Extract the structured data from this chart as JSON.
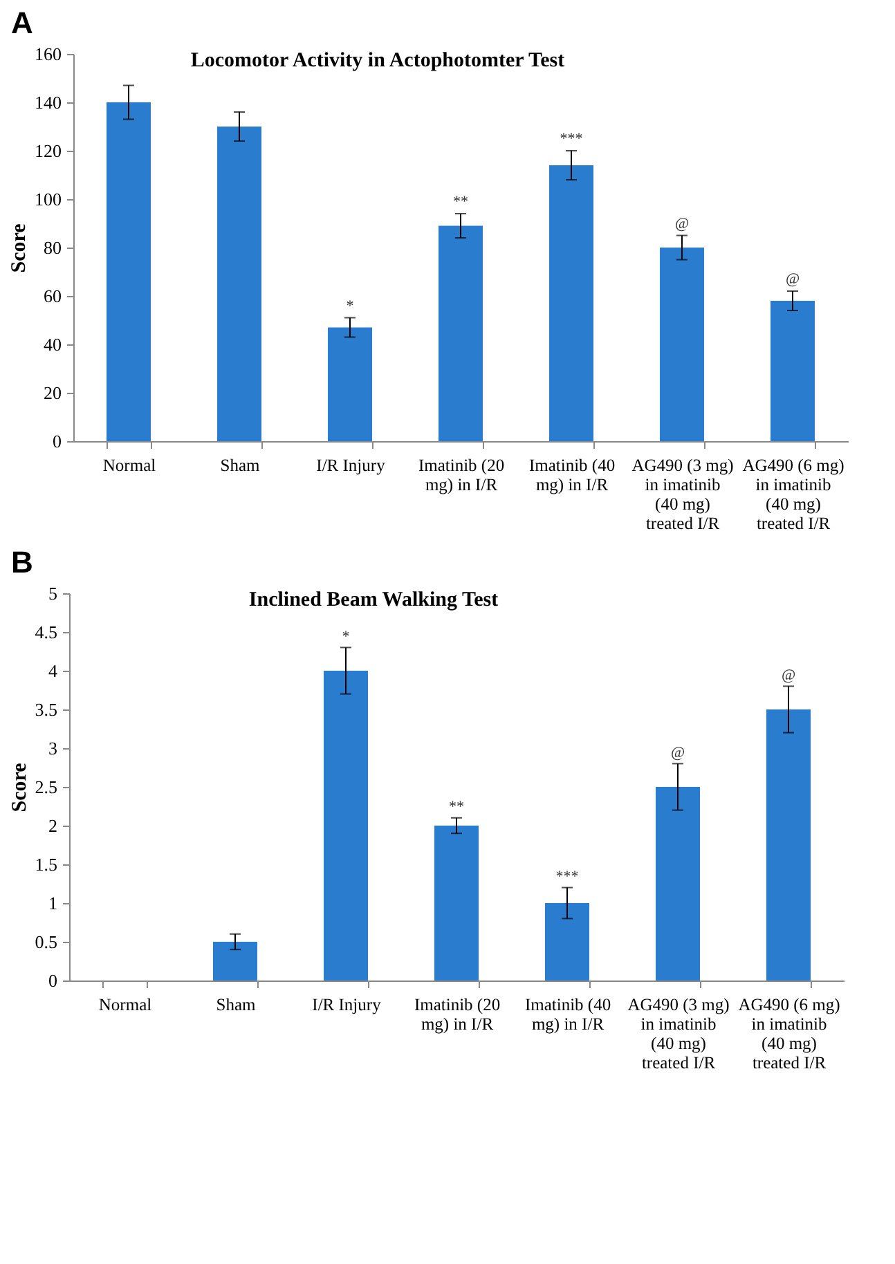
{
  "chart_data": [
    {
      "type": "bar",
      "title": "Locomotor Activity in Actophotomter Test",
      "ylabel": "Score",
      "categories": [
        "Normal",
        "Sham",
        "I/R Injury",
        "Imatinib (20 mg) in I/R",
        "Imatinib (40 mg) in I/R",
        "AG490 (3 mg) in imatinib (40 mg) treated I/R",
        "AG490 (6 mg) in imatinib (40 mg) treated I/R"
      ],
      "values": [
        140,
        130,
        47,
        89,
        114,
        80,
        58
      ],
      "errors": [
        7,
        6,
        4,
        5,
        6,
        5,
        4
      ],
      "color": "#2a7ccf",
      "ylim": [
        0,
        160
      ],
      "yticks": [
        0,
        20,
        40,
        60,
        80,
        100,
        120,
        140,
        160
      ],
      "grid": false,
      "annotations": [
        "A",
        {
          "text": "*",
          "x": "I/R Injury",
          "y": 53
        },
        {
          "text": "**",
          "x": "Imatinib (20 mg) in I/R",
          "y": 96
        },
        {
          "text": "***",
          "x": "Imatinib (40 mg) in I/R",
          "y": 122
        },
        {
          "text": "@",
          "x": "AG490 (3 mg) in imatinib (40 mg) treated I/R",
          "y": 87
        },
        {
          "text": "@",
          "x": "AG490 (6 mg) in imatinib (40 mg) treated I/R",
          "y": 64
        }
      ]
    },
    {
      "type": "bar",
      "title": "Inclined Beam Walking Test",
      "ylabel": "Score",
      "categories": [
        "Normal",
        "Sham",
        "I/R Injury",
        "Imatinib (20 mg) in I/R",
        "Imatinib (40 mg) in I/R",
        "AG490 (3 mg) in imatinib (40 mg) treated I/R",
        "AG490 (6 mg) in imatinib (40 mg) treated I/R"
      ],
      "values": [
        0,
        0.5,
        4,
        2,
        1,
        2.5,
        3.5
      ],
      "errors": [
        null,
        0.1,
        0.3,
        0.1,
        0.2,
        0.3,
        0.3
      ],
      "color": "#2a7ccf",
      "ylim": [
        0,
        5
      ],
      "yticks": [
        0,
        0.5,
        1,
        1.5,
        2,
        2.5,
        3,
        3.5,
        4,
        4.5,
        5
      ],
      "grid": false,
      "annotations": [
        "B",
        {
          "text": "*",
          "x": "I/R Injury",
          "y": 4.35
        },
        {
          "text": "**",
          "x": "Imatinib (20 mg) in I/R",
          "y": 2.15
        },
        {
          "text": "***",
          "x": "Imatinib (40 mg) in I/R",
          "y": 1.25
        },
        {
          "text": "@",
          "x": "AG490 (3 mg) in imatinib (40 mg) treated I/R",
          "y": 2.85
        },
        {
          "text": "@",
          "x": "AG490 (6 mg) in imatinib (40 mg) treated I/R",
          "y": 3.85
        }
      ]
    }
  ]
}
